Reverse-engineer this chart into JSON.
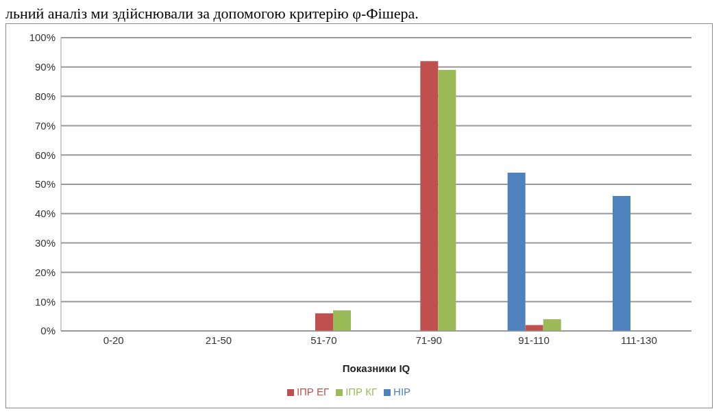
{
  "chart_data": {
    "type": "bar",
    "xlabel": "Показники IQ",
    "annotations": [
      "льний аналіз ми здійснювали за допомогою критерію φ-Фішера."
    ],
    "categories": [
      "0-20",
      "21-50",
      "51-70",
      "71-90",
      "91-110",
      "111-130"
    ],
    "series": [
      {
        "name": "НІР",
        "color": "#4f81bd",
        "values": [
          0,
          0,
          0,
          0,
          54,
          46
        ]
      },
      {
        "name": "ІПР ЕГ",
        "color": "#c0504d",
        "values": [
          0,
          0,
          6,
          92,
          2,
          0
        ]
      },
      {
        "name": "ІПР КГ",
        "color": "#9bbb59",
        "values": [
          0,
          0,
          7,
          89,
          4,
          0
        ]
      }
    ],
    "ylim": [
      0,
      100
    ],
    "yticks": [
      {
        "value": 0,
        "label": "0%"
      },
      {
        "value": 10,
        "label": "10%"
      },
      {
        "value": 20,
        "label": "20%"
      },
      {
        "value": 30,
        "label": "30%"
      },
      {
        "value": 40,
        "label": "40%"
      },
      {
        "value": 50,
        "label": "50%"
      },
      {
        "value": 60,
        "label": "60%"
      },
      {
        "value": 70,
        "label": "70%"
      },
      {
        "value": 80,
        "label": "80%"
      },
      {
        "value": 90,
        "label": "90%"
      },
      {
        "value": 100,
        "label": "100%"
      }
    ],
    "grid": "y",
    "legend": "bottom"
  }
}
